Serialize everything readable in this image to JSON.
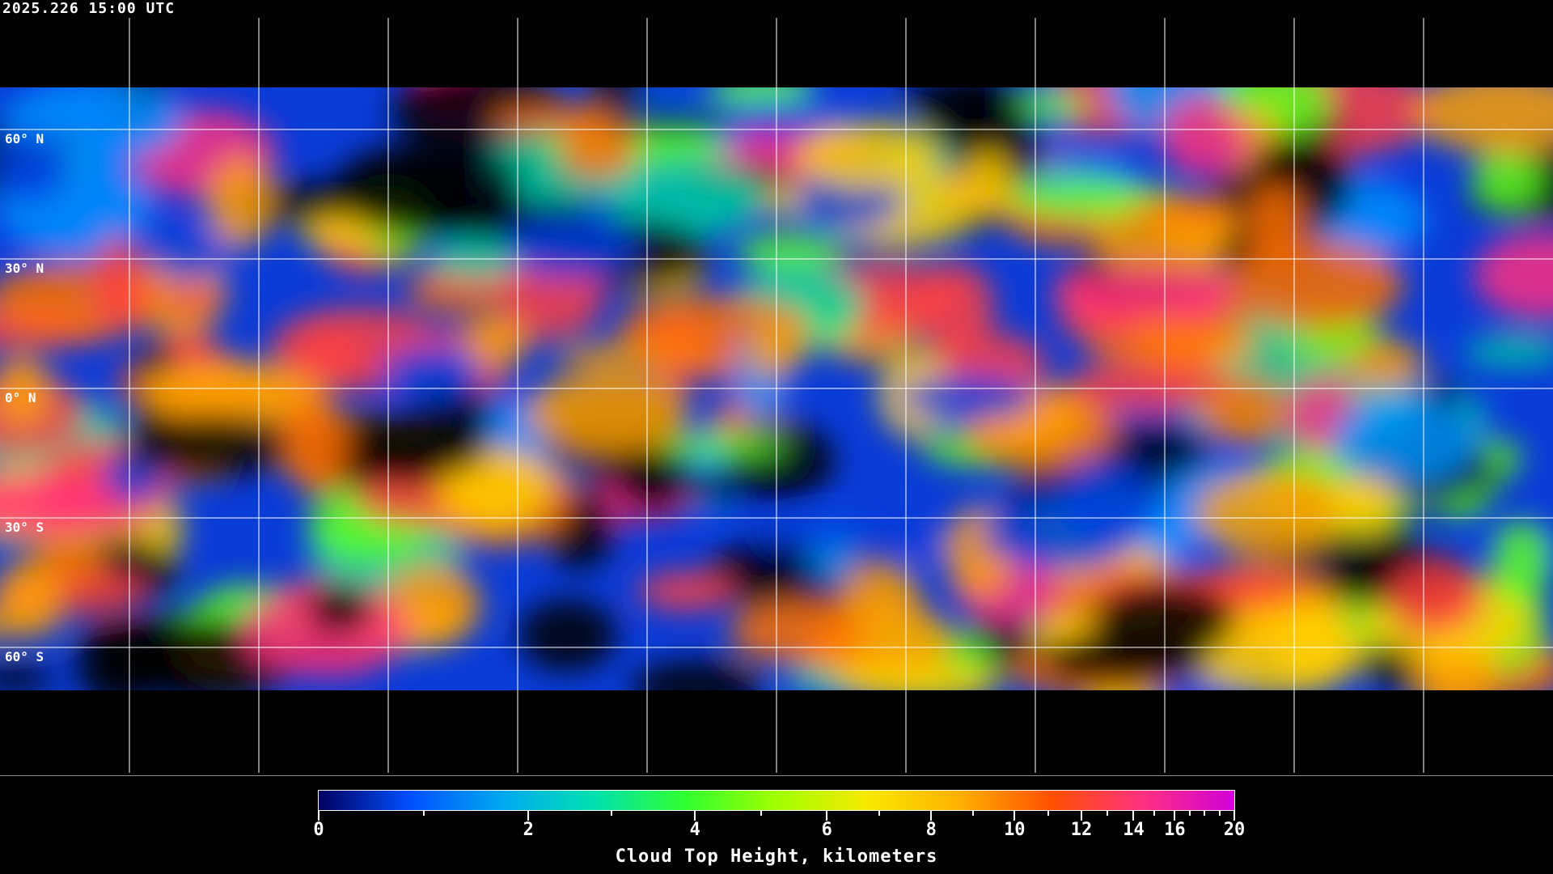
{
  "timestamp": "2025.226 15:00 UTC",
  "map": {
    "projection": "equirectangular",
    "graticule_spacing_deg": 30,
    "lat_labels": [
      "60° N",
      "30° N",
      "0° N",
      "30° S",
      "60° S"
    ],
    "lat_values": [
      60,
      30,
      0,
      -30,
      -60
    ]
  },
  "colorbar": {
    "title": "Cloud Top Height, kilometers",
    "range": [
      0,
      20
    ],
    "tick_labels": [
      "0",
      "2",
      "4",
      "6",
      "8",
      "10",
      "12",
      "14",
      "16",
      "20"
    ],
    "tick_values": [
      0,
      2,
      4,
      6,
      8,
      10,
      12,
      14,
      16,
      20
    ],
    "minor_ticks": [
      1,
      3,
      5,
      7,
      9,
      11,
      13,
      15,
      17,
      18,
      19
    ],
    "colors": [
      "#000060",
      "#0050ff",
      "#00a8f0",
      "#00e0b0",
      "#30ff30",
      "#a0ff00",
      "#f8e800",
      "#ffb000",
      "#ff5000",
      "#ff3080",
      "#d000d8"
    ]
  }
}
